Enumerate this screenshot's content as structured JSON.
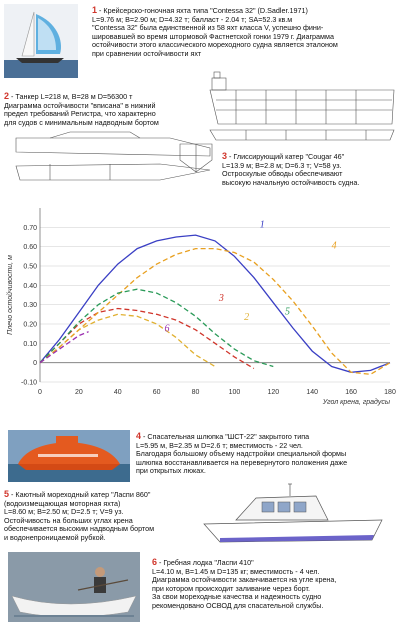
{
  "items": {
    "1": {
      "number": "1",
      "title": "- Крейсерско-гоночная яхта типа \"Contessa 32\"  (D.Sadler.1971)",
      "lines": [
        "L=9.76 м; B=2.90 м; D=4.32 т; балласт - 2.04 т; SA=52.3 кв.м",
        "\"Contessa 32\" была единственной из 58 яхт класса V, успешно фини-",
        "шировавшей во время штормовой Фастнетской гонки 1979 г. Диаграмма",
        "остойчивости этого классического мореходного судна является эталоном",
        "при сравнении остойчивости яхт"
      ]
    },
    "2": {
      "number": "2",
      "title": "- Танкер L=218 м, B=28 м D=56300 т",
      "lines": [
        "Диаграмма остойчивости \"вписана\" в нижний",
        "предел требований Регистра, что характерно",
        "для судов с минимальным надводным бортом"
      ]
    },
    "3": {
      "number": "3",
      "title": "- Глиссирующий катер \"Cougar 46\"",
      "lines": [
        "L=13.9 м; B=2.8 м; D=6.3 т; V=58 уз.",
        "Остроскулые обводы обеспечивают",
        "высокую начальную остойчивость судна."
      ]
    },
    "4": {
      "number": "4",
      "title": "- Спасательная шлюпка \"ШСТ-22\" закрытого типа",
      "lines": [
        "L=5.95 м, B=2.35 м D=2.6 т; вместимость - 22 чел.",
        "Благодаря большому объему надстройки специальной формы",
        "шлюпка восстанавливается на перевернутого положения даже",
        "при открытых люках."
      ]
    },
    "5": {
      "number": "5",
      "title": "- Каютный мореходный катер \"Ласпи 860\"",
      "lines": [
        "(водоизмещающая моторная яхта)",
        "L=8.60 м; B=2.50 м; D=2.5 т; V=9 уз.",
        "Остойчивость на больших углах крена",
        "обеспечивается высоким надводным бортом",
        "и водонепроницаемой рубкой."
      ]
    },
    "6": {
      "number": "6",
      "title": "- Гребная лодка \"Ласпи 410\"",
      "lines": [
        "L=4.10 м, B=1.45 м D=135 кг; вместимость - 4 чел.",
        "Диаграмма остойчивости заканчивается на угле крена,",
        "при котором происходит заливание через борт.",
        "За свои мореходные качества и надежность судно",
        "рекомендовано ОСВОД для спасательной службы."
      ]
    }
  },
  "chart_data": {
    "type": "line",
    "ylabel": "Плечо остойчивости, м",
    "xlabel": "Угол крена, градусы",
    "xlim": [
      0,
      180
    ],
    "ylim": [
      -0.1,
      0.8
    ],
    "xticks": [
      "0",
      "20",
      "40",
      "60",
      "80",
      "100",
      "120",
      "140",
      "160",
      "180"
    ],
    "yticks": [
      "-0.10",
      "0",
      "0.10",
      "0.20",
      "0.30",
      "0.40",
      "0.50",
      "0.60",
      "0.70"
    ],
    "series": [
      {
        "name": "1",
        "color": "#3a3fc4",
        "style": "solid",
        "x": [
          0,
          10,
          20,
          30,
          40,
          50,
          60,
          70,
          80,
          90,
          100,
          110,
          120,
          130,
          140,
          150,
          160,
          170,
          180
        ],
        "y": [
          0,
          0.12,
          0.26,
          0.4,
          0.51,
          0.59,
          0.63,
          0.65,
          0.66,
          0.63,
          0.55,
          0.44,
          0.31,
          0.18,
          0.06,
          -0.02,
          -0.05,
          -0.04,
          0
        ]
      },
      {
        "name": "2",
        "color": "#e0b030",
        "style": "dashed",
        "x": [
          0,
          10,
          20,
          30,
          40,
          50,
          60,
          70,
          80,
          90
        ],
        "y": [
          0,
          0.08,
          0.17,
          0.22,
          0.25,
          0.24,
          0.2,
          0.13,
          0.04,
          -0.02
        ]
      },
      {
        "name": "3",
        "color": "#d0352b",
        "style": "dashed",
        "x": [
          0,
          10,
          20,
          30,
          40,
          50,
          60,
          70,
          80,
          90,
          100,
          110
        ],
        "y": [
          0,
          0.1,
          0.2,
          0.26,
          0.28,
          0.27,
          0.25,
          0.22,
          0.17,
          0.1,
          0.03,
          -0.03
        ]
      },
      {
        "name": "4",
        "color": "#e8a020",
        "style": "dashed",
        "x": [
          0,
          10,
          20,
          30,
          40,
          50,
          60,
          70,
          80,
          90,
          100,
          110,
          120,
          130,
          140,
          150,
          160,
          170,
          180
        ],
        "y": [
          0,
          0.08,
          0.17,
          0.26,
          0.35,
          0.44,
          0.51,
          0.56,
          0.59,
          0.59,
          0.57,
          0.52,
          0.43,
          0.32,
          0.19,
          0.05,
          -0.05,
          -0.06,
          0
        ]
      },
      {
        "name": "5",
        "color": "#2a9a58",
        "style": "dashed",
        "x": [
          0,
          10,
          20,
          30,
          40,
          50,
          60,
          70,
          80,
          90,
          100,
          110,
          120
        ],
        "y": [
          0,
          0.1,
          0.21,
          0.3,
          0.36,
          0.38,
          0.36,
          0.31,
          0.24,
          0.15,
          0.07,
          0.01,
          -0.02
        ]
      },
      {
        "name": "6",
        "color": "#9b2fb0",
        "style": "dashed",
        "x": [
          0,
          10,
          20,
          25
        ],
        "y": [
          0,
          0.07,
          0.14,
          0.16
        ]
      }
    ]
  },
  "colors": {
    "axis": "#777",
    "grid": "#ccc"
  }
}
